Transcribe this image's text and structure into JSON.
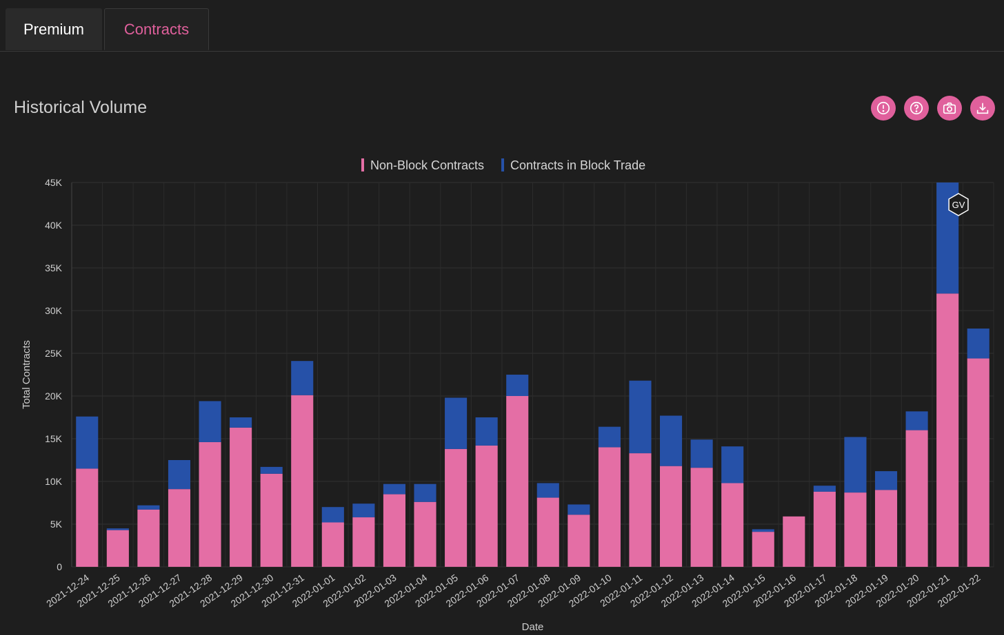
{
  "tabs": [
    {
      "label": "Premium",
      "active": false
    },
    {
      "label": "Contracts",
      "active": true
    }
  ],
  "section": {
    "title": "Historical Volume"
  },
  "toolbar": {
    "icons": [
      "info-icon",
      "help-icon",
      "camera-icon",
      "download-icon"
    ]
  },
  "colors": {
    "accent": "#e0609c",
    "non_block": "#e46ea5",
    "block": "#2651a8",
    "background": "#1e1e1e"
  },
  "watermark": "GV",
  "chart_data": {
    "type": "bar",
    "stacked": true,
    "xlabel": "Date",
    "ylabel": "Total Contracts",
    "ylim": [
      0,
      45000
    ],
    "yticks": [
      "0",
      "5K",
      "10K",
      "15K",
      "20K",
      "25K",
      "30K",
      "35K",
      "40K",
      "45K"
    ],
    "legend_position": "top",
    "grid": true,
    "categories": [
      "2021-12-24",
      "2021-12-25",
      "2021-12-26",
      "2021-12-27",
      "2021-12-28",
      "2021-12-29",
      "2021-12-30",
      "2021-12-31",
      "2022-01-01",
      "2022-01-02",
      "2022-01-03",
      "2022-01-04",
      "2022-01-05",
      "2022-01-06",
      "2022-01-07",
      "2022-01-08",
      "2022-01-09",
      "2022-01-10",
      "2022-01-11",
      "2022-01-12",
      "2022-01-13",
      "2022-01-14",
      "2022-01-15",
      "2022-01-16",
      "2022-01-17",
      "2022-01-18",
      "2022-01-19",
      "2022-01-20",
      "2022-01-21",
      "2022-01-22"
    ],
    "series": [
      {
        "name": "Non-Block Contracts",
        "color": "#e46ea5",
        "values": [
          11500,
          4300,
          6700,
          9100,
          14600,
          16300,
          10900,
          20100,
          5200,
          5800,
          8500,
          7600,
          13800,
          14200,
          20000,
          8100,
          6100,
          14000,
          13300,
          11800,
          11600,
          9800,
          4100,
          5900,
          8800,
          8700,
          9000,
          16000,
          32000,
          24400
        ]
      },
      {
        "name": "Contracts in Block Trade",
        "color": "#2651a8",
        "values": [
          6100,
          200,
          500,
          3400,
          4800,
          1200,
          800,
          4000,
          1800,
          1600,
          1200,
          2100,
          6000,
          3300,
          2500,
          1700,
          1200,
          2400,
          8500,
          5900,
          3300,
          4300,
          300,
          0,
          700,
          6500,
          2200,
          2200,
          13000,
          3500
        ]
      }
    ]
  }
}
